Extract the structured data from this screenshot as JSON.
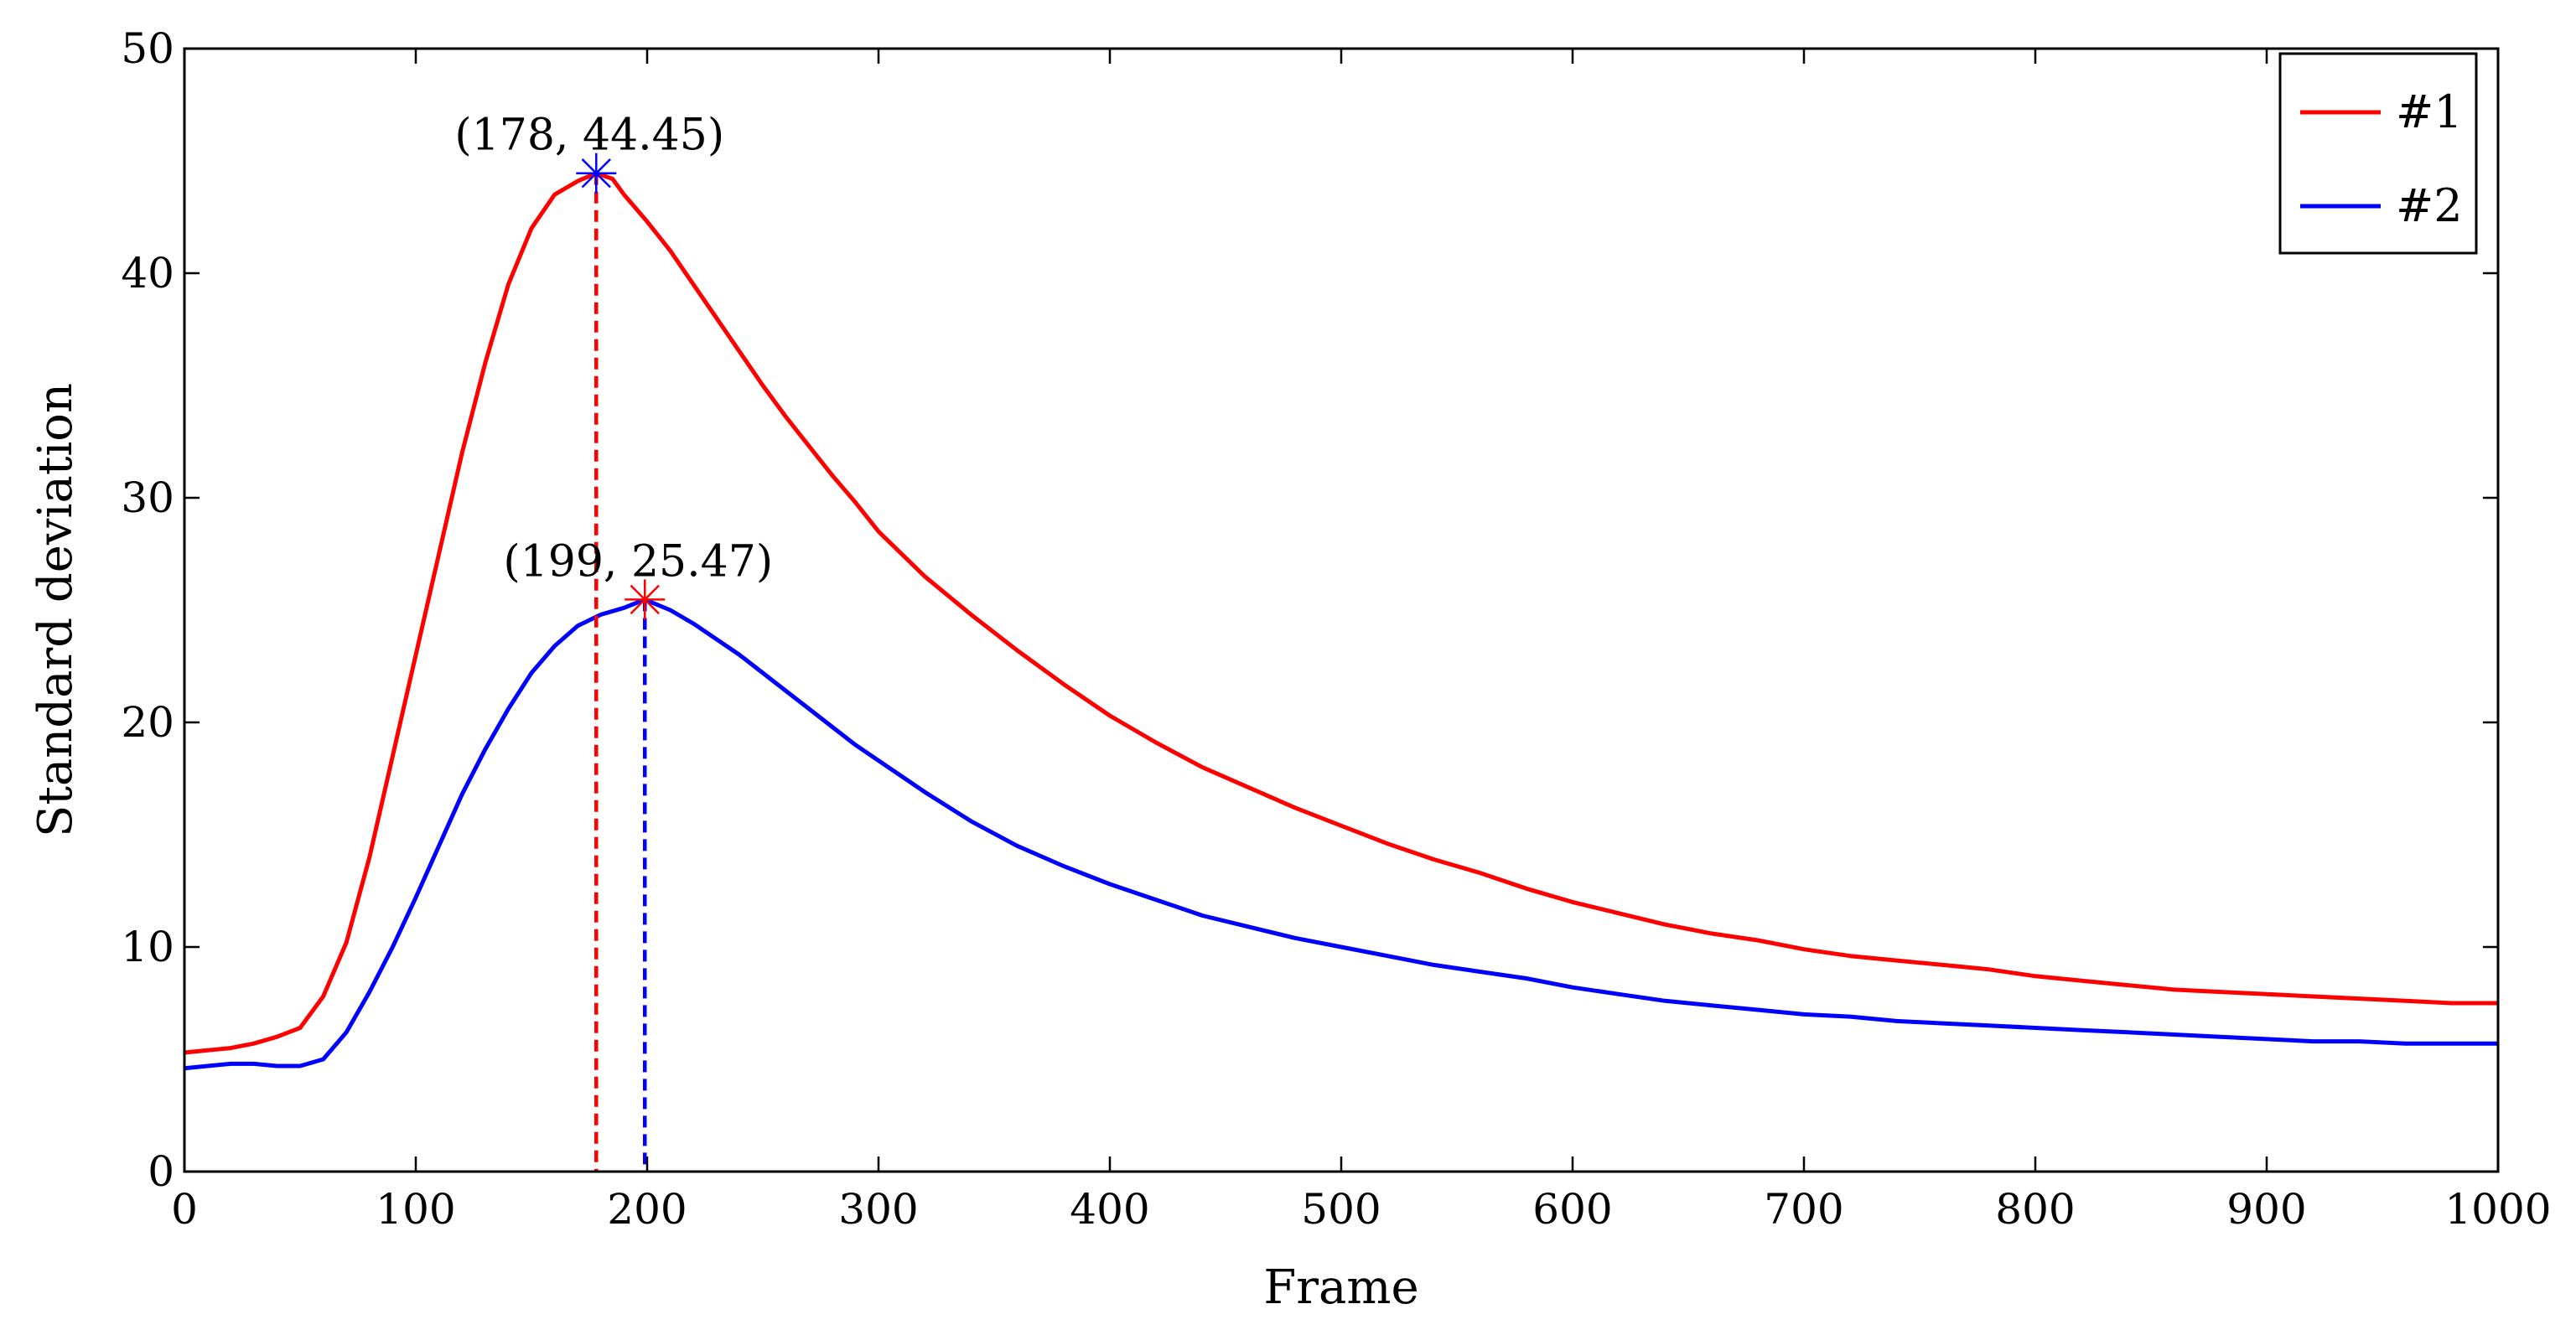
{
  "chart_data": {
    "type": "line",
    "title": "",
    "xlabel": "Frame",
    "ylabel": "Standard deviation",
    "xlim": [
      0,
      1000
    ],
    "ylim": [
      0,
      50
    ],
    "xticks": [
      0,
      100,
      200,
      300,
      400,
      500,
      600,
      700,
      800,
      900,
      1000
    ],
    "yticks": [
      0,
      10,
      20,
      30,
      40,
      50
    ],
    "grid": false,
    "legend_position": "top-right",
    "series": [
      {
        "name": "#1",
        "color": "#ff0000",
        "x": [
          0,
          10,
          20,
          30,
          40,
          50,
          60,
          70,
          80,
          90,
          100,
          110,
          120,
          130,
          140,
          150,
          160,
          170,
          178,
          185,
          190,
          200,
          210,
          220,
          230,
          240,
          250,
          260,
          270,
          280,
          290,
          300,
          320,
          340,
          360,
          380,
          400,
          420,
          440,
          460,
          480,
          500,
          520,
          540,
          560,
          580,
          600,
          620,
          640,
          660,
          680,
          700,
          720,
          740,
          760,
          780,
          800,
          820,
          840,
          860,
          880,
          900,
          920,
          940,
          960,
          980,
          1000
        ],
        "values": [
          5.3,
          5.4,
          5.5,
          5.7,
          6.0,
          6.4,
          7.8,
          10.2,
          14.0,
          18.5,
          23.0,
          27.5,
          32.0,
          36.0,
          39.5,
          42.0,
          43.5,
          44.1,
          44.45,
          44.2,
          43.5,
          42.3,
          41.0,
          39.5,
          38.0,
          36.5,
          35.0,
          33.6,
          32.3,
          31.0,
          29.8,
          28.5,
          26.5,
          24.8,
          23.2,
          21.7,
          20.3,
          19.1,
          18.0,
          17.1,
          16.2,
          15.4,
          14.6,
          13.9,
          13.3,
          12.6,
          12.0,
          11.5,
          11.0,
          10.6,
          10.3,
          9.9,
          9.6,
          9.4,
          9.2,
          9.0,
          8.7,
          8.5,
          8.3,
          8.1,
          8.0,
          7.9,
          7.8,
          7.7,
          7.6,
          7.5,
          7.5
        ]
      },
      {
        "name": "#2",
        "color": "#0000ff",
        "x": [
          0,
          10,
          20,
          30,
          40,
          50,
          60,
          70,
          80,
          90,
          100,
          110,
          120,
          130,
          140,
          150,
          160,
          170,
          180,
          190,
          199,
          210,
          220,
          230,
          240,
          250,
          260,
          270,
          280,
          290,
          300,
          320,
          340,
          360,
          380,
          400,
          420,
          440,
          460,
          480,
          500,
          520,
          540,
          560,
          580,
          600,
          620,
          640,
          660,
          680,
          700,
          720,
          740,
          760,
          780,
          800,
          820,
          840,
          860,
          880,
          900,
          920,
          940,
          960,
          980,
          1000
        ],
        "values": [
          4.6,
          4.7,
          4.8,
          4.8,
          4.7,
          4.7,
          5.0,
          6.2,
          8.0,
          10.0,
          12.2,
          14.5,
          16.8,
          18.8,
          20.6,
          22.2,
          23.4,
          24.3,
          24.8,
          25.1,
          25.47,
          25.0,
          24.4,
          23.7,
          23.0,
          22.2,
          21.4,
          20.6,
          19.8,
          19.0,
          18.3,
          16.9,
          15.6,
          14.5,
          13.6,
          12.8,
          12.1,
          11.4,
          10.9,
          10.4,
          10.0,
          9.6,
          9.2,
          8.9,
          8.6,
          8.2,
          7.9,
          7.6,
          7.4,
          7.2,
          7.0,
          6.9,
          6.7,
          6.6,
          6.5,
          6.4,
          6.3,
          6.2,
          6.1,
          6.0,
          5.9,
          5.8,
          5.8,
          5.7,
          5.7,
          5.7
        ]
      }
    ],
    "annotations": [
      {
        "label": "(178, 44.45)",
        "x": 178,
        "y": 44.45,
        "marker_color": "#0000ff",
        "vline_color": "#ff0000"
      },
      {
        "label": "(199, 25.47)",
        "x": 199,
        "y": 25.47,
        "marker_color": "#ff0000",
        "vline_color": "#0000ff"
      }
    ]
  }
}
